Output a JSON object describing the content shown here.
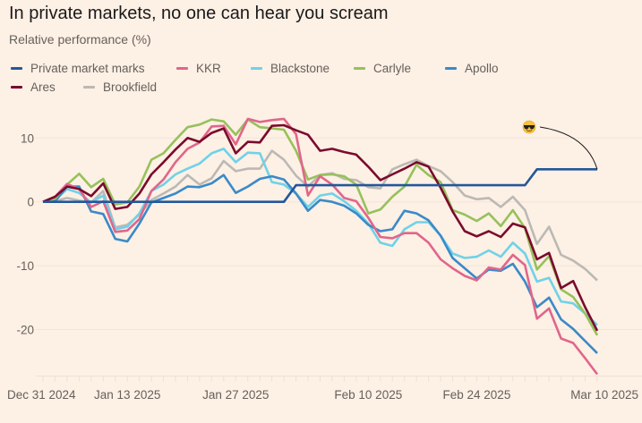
{
  "chart_data": {
    "type": "line",
    "title": "In private markets, no one can hear you scream",
    "subtitle": "Relative performance (%)",
    "xlabel": "",
    "ylabel": "Relative performance (%)",
    "ylim": [
      -27,
      15
    ],
    "yticks": [
      10,
      0,
      -10,
      -20
    ],
    "ytick_labels": [
      "10",
      "0",
      "-10",
      "-20"
    ],
    "grid": true,
    "legend_placement": "top-left",
    "x_count": 47,
    "xticks": [
      {
        "index": 0,
        "label": "Dec 31 2024"
      },
      {
        "index": 7,
        "label": "Jan 13 2025"
      },
      {
        "index": 16,
        "label": "Jan 27 2025"
      },
      {
        "index": 27,
        "label": "Feb 10 2025"
      },
      {
        "index": 36,
        "label": "Feb 24 2025"
      },
      {
        "index": 46,
        "label": "Mar 10 2025"
      }
    ],
    "annotation": {
      "icon": "sunglasses-emoji",
      "target_series": "Private market marks",
      "target_index": 46
    },
    "series": [
      {
        "name": "Brookfield",
        "color": "#bcb9b4",
        "values": [
          0,
          0.1,
          0.6,
          0.2,
          -0.1,
          1.7,
          -4.0,
          -3.6,
          -2.0,
          0.3,
          1.3,
          2.4,
          4.2,
          2.7,
          3.7,
          6.4,
          4.8,
          5.2,
          5.2,
          8.0,
          6.6,
          4.1,
          2.4,
          4.2,
          4.5,
          3.6,
          3.4,
          2.3,
          2.1,
          5.1,
          5.9,
          6.6,
          5.6,
          4.8,
          3.1,
          1.0,
          0.4,
          0.6,
          -0.8,
          0.8,
          -1.3,
          -6.6,
          -3.9,
          -8.3,
          -9.2,
          -10.5,
          -12.3
        ]
      },
      {
        "name": "Blackstone",
        "color": "#6fd2e8",
        "values": [
          0,
          0.3,
          2.0,
          1.4,
          -0.1,
          1.0,
          -4.3,
          -3.9,
          -1.8,
          1.7,
          2.7,
          4.3,
          5.2,
          6.0,
          7.6,
          8.3,
          6.2,
          7.7,
          7.6,
          3.1,
          2.7,
          1.3,
          -0.8,
          1.0,
          1.3,
          0.1,
          -1.4,
          -3.4,
          -6.4,
          -6.9,
          -4.3,
          -3.2,
          -3.2,
          -5.3,
          -8.1,
          -8.8,
          -8.6,
          -7.6,
          -8.6,
          -6.4,
          -8.1,
          -12.5,
          -11.9,
          -15.6,
          -15.9,
          -17.5,
          -19.3
        ]
      },
      {
        "name": "Apollo",
        "color": "#3a8ac8",
        "values": [
          0,
          0.1,
          2.4,
          2.4,
          -1.5,
          -1.9,
          -5.8,
          -6.2,
          -3.4,
          -0.1,
          0.6,
          1.3,
          2.4,
          2.3,
          2.9,
          4.2,
          1.4,
          2.4,
          3.6,
          4.0,
          3.5,
          1.3,
          -1.4,
          0.3,
          0,
          -0.6,
          -1.8,
          -3.6,
          -4.6,
          -4.3,
          -1.4,
          -1.8,
          -2.9,
          -5.3,
          -8.8,
          -10.4,
          -12.0,
          -10.6,
          -10.8,
          -9.7,
          -12.5,
          -16.5,
          -15.0,
          -18.4,
          -19.9,
          -21.8,
          -23.7
        ]
      },
      {
        "name": "Carlyle",
        "color": "#96c15b",
        "values": [
          0,
          0.5,
          2.7,
          4.4,
          2.3,
          3.6,
          -0.4,
          -0.1,
          2.4,
          6.6,
          7.6,
          9.7,
          11.7,
          12.1,
          12.9,
          12.6,
          10.5,
          12.9,
          11.7,
          11.5,
          11.3,
          8.0,
          3.5,
          4.2,
          4.3,
          4.0,
          2.7,
          -1.8,
          -1.2,
          0.8,
          2.4,
          5.8,
          4.2,
          3.1,
          -1.3,
          -2.0,
          -3.0,
          -1.8,
          -3.8,
          -1.3,
          -4.1,
          -10.6,
          -8.5,
          -13.7,
          -14.9,
          -17.5,
          -20.9
        ]
      },
      {
        "name": "KKR",
        "color": "#e0668b",
        "values": [
          0,
          0.8,
          2.8,
          2.0,
          -0.8,
          0.1,
          -4.7,
          -4.5,
          -2.7,
          1.7,
          3.5,
          6.2,
          8.3,
          9.3,
          11.8,
          11.9,
          9.0,
          13.0,
          12.5,
          12.8,
          13.0,
          10.6,
          1.0,
          4.0,
          2.7,
          0.6,
          0.1,
          -2.5,
          -5.5,
          -5.7,
          -4.9,
          -4.9,
          -6.4,
          -9.0,
          -10.4,
          -11.6,
          -12.3,
          -10.3,
          -10.6,
          -8.3,
          -9.9,
          -18.3,
          -16.7,
          -21.4,
          -22.1,
          -24.5,
          -27.0
        ]
      },
      {
        "name": "Ares",
        "color": "#7a0b2d",
        "values": [
          0,
          0.8,
          2.4,
          2.0,
          0.9,
          2.9,
          -1.1,
          -0.8,
          1.3,
          4.3,
          6.2,
          8.2,
          10.0,
          9.4,
          10.8,
          11.5,
          7.6,
          9.4,
          9.3,
          11.9,
          12.0,
          11.2,
          10.5,
          8.0,
          8.3,
          7.8,
          7.4,
          5.5,
          3.4,
          4.3,
          5.2,
          6.2,
          5.5,
          2.2,
          -1.5,
          -4.6,
          -5.4,
          -4.6,
          -5.5,
          -3.4,
          -4.0,
          -9.0,
          -8.0,
          -13.5,
          -12.4,
          -16.5,
          -20.2
        ]
      },
      {
        "name": "Private market marks",
        "color": "#23579a",
        "values": [
          0,
          0,
          0,
          0,
          0,
          0,
          0,
          0,
          0,
          0,
          0,
          0,
          0,
          0,
          0,
          0,
          0,
          0,
          0,
          0,
          0,
          2.6,
          2.6,
          2.6,
          2.6,
          2.6,
          2.6,
          2.6,
          2.6,
          2.6,
          2.6,
          2.6,
          2.6,
          2.6,
          2.6,
          2.6,
          2.6,
          2.6,
          2.6,
          2.6,
          2.6,
          5.1,
          5.1,
          5.1,
          5.1,
          5.1,
          5.1
        ]
      }
    ],
    "legend": [
      {
        "name": "Private market marks",
        "color": "#23579a"
      },
      {
        "name": "KKR",
        "color": "#e0668b"
      },
      {
        "name": "Blackstone",
        "color": "#6fd2e8"
      },
      {
        "name": "Carlyle",
        "color": "#96c15b"
      },
      {
        "name": "Apollo",
        "color": "#3a8ac8"
      },
      {
        "name": "Ares",
        "color": "#7a0b2d"
      },
      {
        "name": "Brookfield",
        "color": "#bcb9b4"
      }
    ]
  }
}
